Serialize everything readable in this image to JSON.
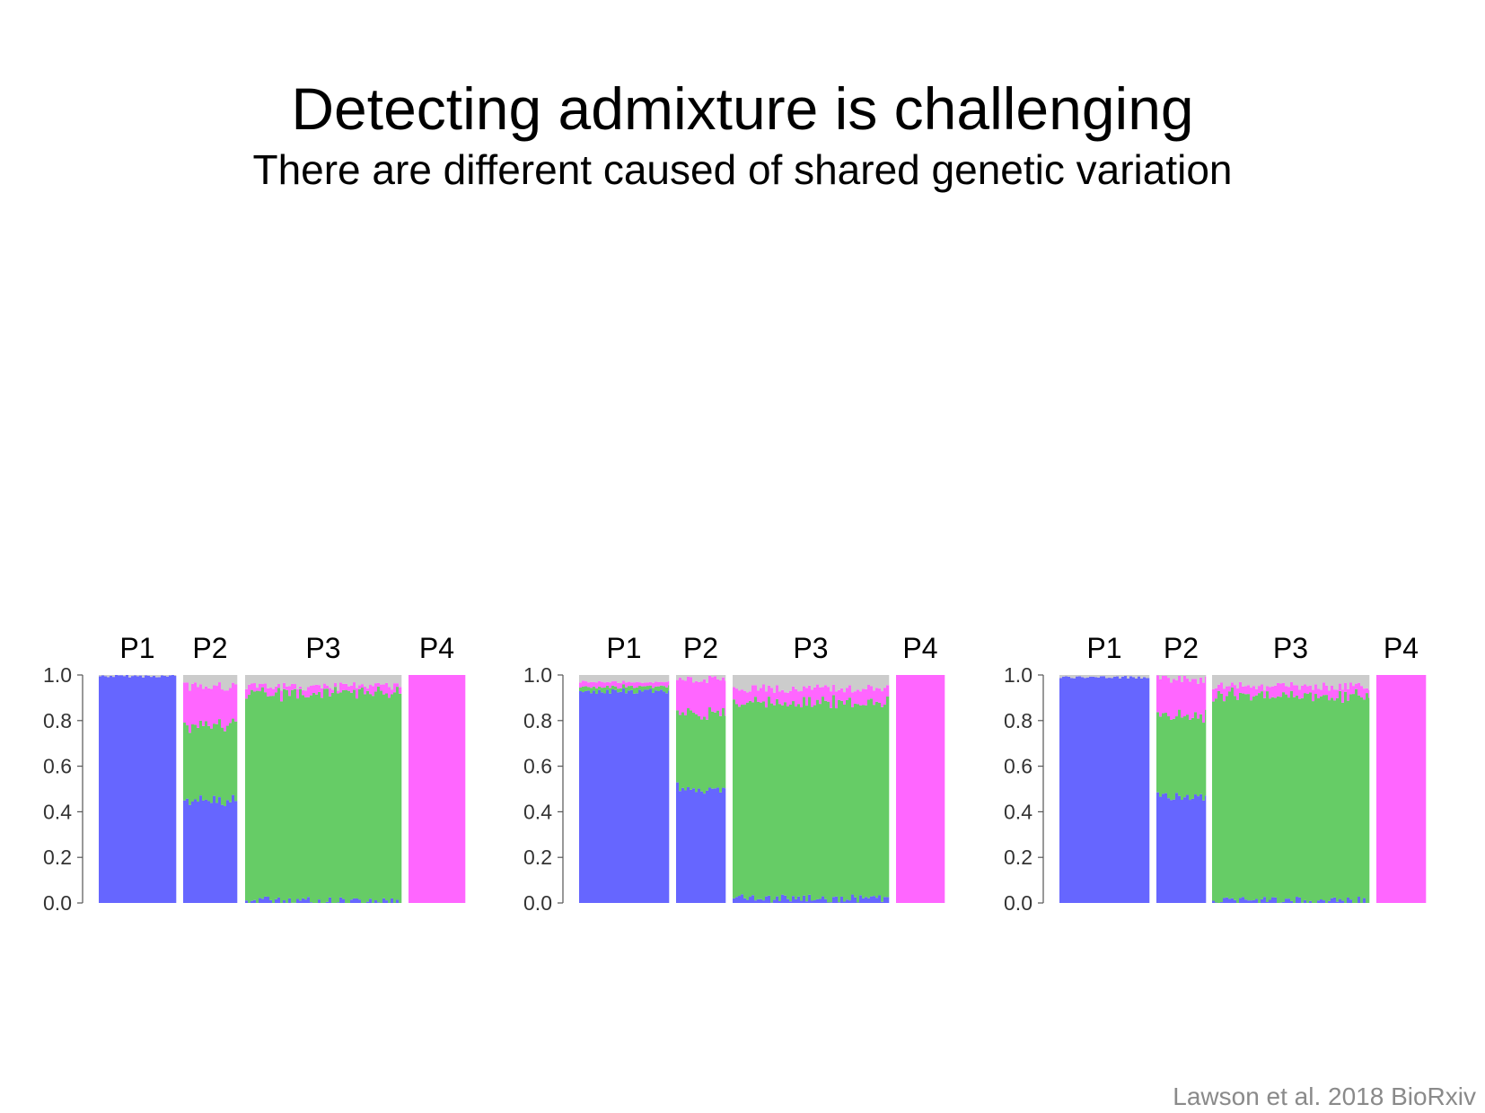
{
  "slide": {
    "title": "Detecting admixture is challenging",
    "subtitle": "There are different caused of shared genetic variation",
    "citation": "Lawson et al. 2018 BioRxiv"
  },
  "colors": {
    "blue": "#6666ff",
    "green": "#66cc66",
    "pink": "#ff66ff",
    "gray": "#cccccc"
  },
  "chart_data": [
    {
      "type": "bar",
      "subtype": "stacked-admixture",
      "ylim": [
        0,
        1
      ],
      "yticks": [
        "0.0",
        "0.2",
        "0.4",
        "0.6",
        "0.8",
        "1.0"
      ],
      "populations": [
        {
          "label": "P1",
          "blue": 0.995,
          "green": 0.0,
          "pink": 0.0,
          "gray": 0.005
        },
        {
          "label": "P2",
          "blue": 0.45,
          "green": 0.33,
          "pink": 0.17,
          "gray": 0.05
        },
        {
          "label": "P3",
          "blue": 0.01,
          "green": 0.91,
          "pink": 0.03,
          "gray": 0.05
        },
        {
          "label": "P4",
          "blue": 0.0,
          "green": 0.0,
          "pink": 1.0,
          "gray": 0.0
        }
      ]
    },
    {
      "type": "bar",
      "subtype": "stacked-admixture",
      "ylim": [
        0,
        1
      ],
      "yticks": [
        "0.0",
        "0.2",
        "0.4",
        "0.6",
        "0.8",
        "1.0"
      ],
      "populations": [
        {
          "label": "P1",
          "blue": 0.93,
          "green": 0.02,
          "pink": 0.02,
          "gray": 0.03
        },
        {
          "label": "P2",
          "blue": 0.5,
          "green": 0.33,
          "pink": 0.15,
          "gray": 0.02
        },
        {
          "label": "P3",
          "blue": 0.02,
          "green": 0.86,
          "pink": 0.06,
          "gray": 0.06
        },
        {
          "label": "P4",
          "blue": 0.0,
          "green": 0.0,
          "pink": 1.0,
          "gray": 0.0
        }
      ]
    },
    {
      "type": "bar",
      "subtype": "stacked-admixture",
      "ylim": [
        0,
        1
      ],
      "yticks": [
        "0.0",
        "0.2",
        "0.4",
        "0.6",
        "0.8",
        "1.0"
      ],
      "populations": [
        {
          "label": "P1",
          "blue": 0.99,
          "green": 0.0,
          "pink": 0.0,
          "gray": 0.01
        },
        {
          "label": "P2",
          "blue": 0.47,
          "green": 0.35,
          "pink": 0.16,
          "gray": 0.02
        },
        {
          "label": "P3",
          "blue": 0.01,
          "green": 0.9,
          "pink": 0.04,
          "gray": 0.05
        },
        {
          "label": "P4",
          "blue": 0.0,
          "green": 0.0,
          "pink": 1.0,
          "gray": 0.0
        }
      ]
    }
  ]
}
